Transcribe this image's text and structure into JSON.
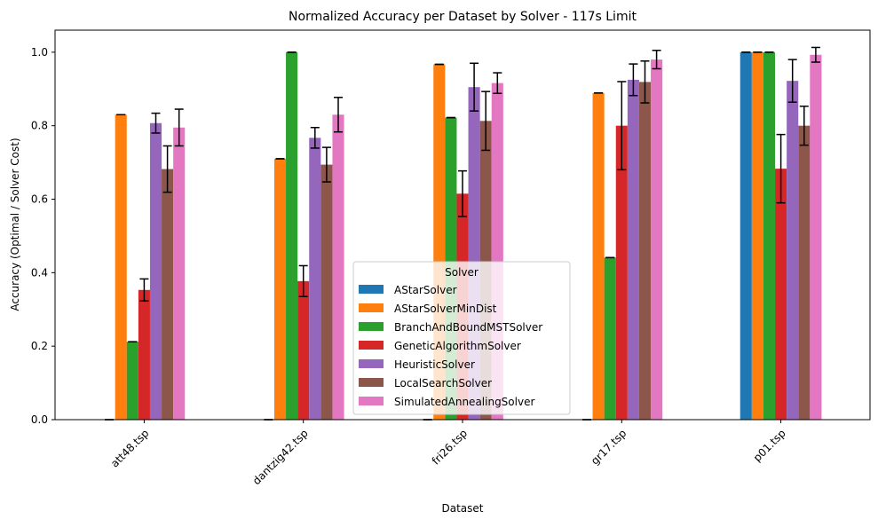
{
  "chart_data": {
    "type": "bar",
    "title": "Normalized Accuracy per Dataset by Solver - 117s Limit",
    "xlabel": "Dataset",
    "ylabel": "Accuracy (Optimal / Solver Cost)",
    "ylim": [
      0,
      1.06
    ],
    "yticks": [
      "0.0",
      "0.2",
      "0.4",
      "0.6",
      "0.8",
      "1.0"
    ],
    "grid": false,
    "legend_title": "Solver",
    "legend_placement": "bottom-center",
    "categories": [
      "att48.tsp",
      "dantzig42.tsp",
      "fri26.tsp",
      "gr17.tsp",
      "p01.tsp"
    ],
    "series": [
      {
        "name": "AStarSolver",
        "color": "#1f77b4",
        "values": [
          0,
          0,
          0,
          0,
          1.0
        ],
        "errors": [
          0,
          0,
          0,
          0,
          0
        ]
      },
      {
        "name": "AStarSolverMinDist",
        "color": "#ff7f0e",
        "values": [
          0.83,
          0.71,
          0.967,
          0.889,
          1.0
        ],
        "errors": [
          0,
          0,
          0,
          0,
          0
        ]
      },
      {
        "name": "BranchAndBoundMSTSolver",
        "color": "#2ca02c",
        "values": [
          0.212,
          1.0,
          0.822,
          0.441,
          1.0
        ],
        "errors": [
          0,
          0,
          0,
          0,
          0
        ]
      },
      {
        "name": "GeneticAlgorithmSolver",
        "color": "#d62728",
        "values": [
          0.353,
          0.377,
          0.615,
          0.8,
          0.683
        ],
        "errors": [
          0.03,
          0.042,
          0.062,
          0.12,
          0.093
        ]
      },
      {
        "name": "HeuristicSolver",
        "color": "#9467bd",
        "values": [
          0.807,
          0.767,
          0.905,
          0.925,
          0.922
        ],
        "errors": [
          0.027,
          0.028,
          0.065,
          0.043,
          0.058
        ]
      },
      {
        "name": "LocalSearchSolver",
        "color": "#8c564b",
        "values": [
          0.682,
          0.694,
          0.813,
          0.919,
          0.8
        ],
        "errors": [
          0.063,
          0.047,
          0.08,
          0.057,
          0.053
        ]
      },
      {
        "name": "SimulatedAnnealingSolver",
        "color": "#e377c2",
        "values": [
          0.795,
          0.83,
          0.916,
          0.98,
          0.993
        ],
        "errors": [
          0.05,
          0.047,
          0.028,
          0.025,
          0.02
        ]
      }
    ]
  }
}
